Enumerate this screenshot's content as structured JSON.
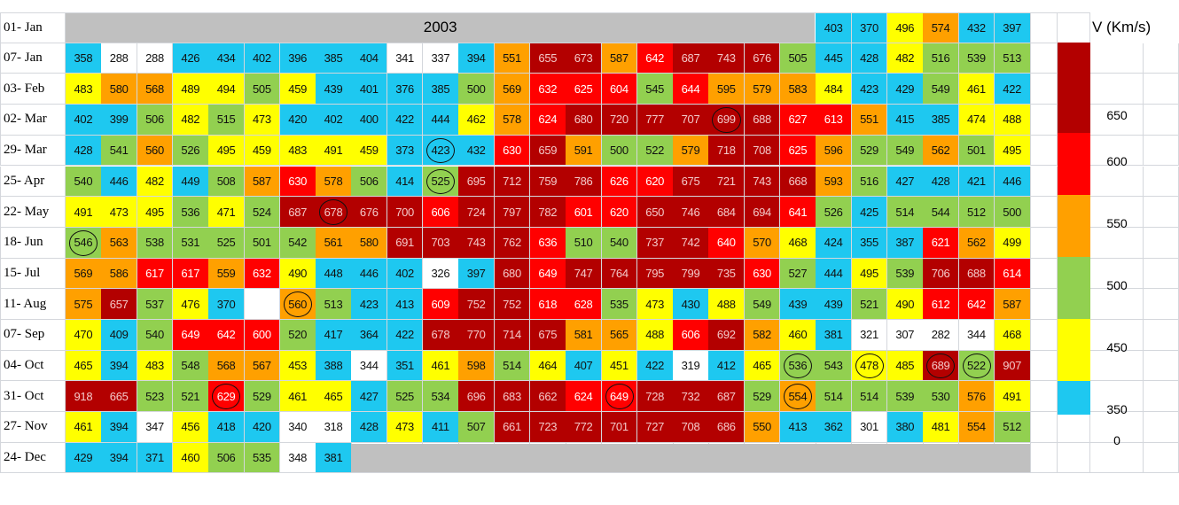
{
  "table": {
    "year": "2003",
    "rows": [
      {
        "label": "01- Jan",
        "values": [
          null,
          null,
          null,
          null,
          null,
          null,
          null,
          null,
          null,
          null,
          null,
          null,
          null,
          null,
          null,
          null,
          null,
          null,
          null,
          null,
          null,
          403,
          370,
          496,
          574,
          432,
          397
        ]
      },
      {
        "label": "07- Jan",
        "values": [
          358,
          288,
          288,
          426,
          434,
          402,
          396,
          385,
          404,
          341,
          337,
          394,
          551,
          655,
          673,
          587,
          642,
          687,
          743,
          676,
          505,
          445,
          428,
          482,
          516,
          539,
          513
        ]
      },
      {
        "label": "03- Feb",
        "values": [
          483,
          580,
          568,
          489,
          494,
          505,
          459,
          439,
          401,
          376,
          385,
          500,
          569,
          632,
          625,
          604,
          545,
          644,
          595,
          579,
          583,
          484,
          423,
          429,
          549,
          461,
          422
        ]
      },
      {
        "label": "02- Mar",
        "values": [
          402,
          399,
          506,
          482,
          515,
          473,
          420,
          402,
          400,
          422,
          444,
          462,
          578,
          624,
          680,
          720,
          777,
          707,
          699,
          688,
          627,
          613,
          551,
          415,
          385,
          474,
          488
        ]
      },
      {
        "label": "29- Mar",
        "values": [
          428,
          541,
          560,
          526,
          495,
          459,
          483,
          491,
          459,
          373,
          423,
          432,
          630,
          659,
          591,
          500,
          522,
          579,
          718,
          708,
          625,
          596,
          529,
          549,
          562,
          501,
          495
        ]
      },
      {
        "label": "25- Apr",
        "values": [
          540,
          446,
          482,
          449,
          508,
          587,
          630,
          578,
          506,
          414,
          525,
          695,
          712,
          759,
          786,
          626,
          620,
          675,
          721,
          743,
          668,
          593,
          516,
          427,
          428,
          421,
          446
        ]
      },
      {
        "label": "22- May",
        "values": [
          491,
          473,
          495,
          536,
          471,
          524,
          687,
          678,
          676,
          700,
          606,
          724,
          797,
          782,
          601,
          620,
          650,
          746,
          684,
          694,
          641,
          526,
          425,
          514,
          544,
          512,
          500
        ]
      },
      {
        "label": "18- Jun",
        "values": [
          546,
          563,
          538,
          531,
          525,
          501,
          542,
          561,
          580,
          691,
          703,
          743,
          762,
          636,
          510,
          540,
          737,
          742,
          640,
          570,
          468,
          424,
          355,
          387,
          621,
          562,
          499
        ]
      },
      {
        "label": "15- Jul",
        "values": [
          569,
          586,
          617,
          617,
          559,
          632,
          490,
          448,
          446,
          402,
          326,
          397,
          680,
          649,
          747,
          764,
          795,
          799,
          735,
          630,
          527,
          444,
          495,
          539,
          706,
          688,
          614
        ]
      },
      {
        "label": "11- Aug",
        "values": [
          575,
          657,
          537,
          476,
          370,
          null,
          560,
          513,
          423,
          413,
          609,
          752,
          752,
          618,
          628,
          535,
          473,
          430,
          488,
          549,
          439,
          439,
          521,
          490,
          612,
          642,
          587
        ]
      },
      {
        "label": "07- Sep",
        "values": [
          470,
          409,
          540,
          649,
          642,
          600,
          520,
          417,
          364,
          422,
          678,
          770,
          714,
          675,
          581,
          565,
          488,
          606,
          692,
          582,
          460,
          381,
          321,
          307,
          282,
          344,
          468
        ]
      },
      {
        "label": "04- Oct",
        "values": [
          465,
          394,
          483,
          548,
          568,
          567,
          453,
          388,
          344,
          351,
          461,
          598,
          514,
          464,
          407,
          451,
          422,
          319,
          412,
          465,
          536,
          543,
          478,
          485,
          689,
          522,
          907
        ]
      },
      {
        "label": "31- Oct",
        "values": [
          918,
          665,
          523,
          521,
          629,
          529,
          461,
          465,
          427,
          525,
          534,
          696,
          683,
          662,
          624,
          649,
          728,
          732,
          687,
          529,
          554,
          514,
          514,
          539,
          530,
          576,
          491
        ]
      },
      {
        "label": "27- Nov",
        "values": [
          461,
          394,
          347,
          456,
          418,
          420,
          340,
          318,
          428,
          473,
          411,
          507,
          661,
          723,
          772,
          701,
          727,
          708,
          686,
          550,
          413,
          362,
          301,
          380,
          481,
          554,
          512
        ]
      },
      {
        "label": "24- Dec",
        "values": [
          429,
          394,
          371,
          460,
          506,
          535,
          348,
          381
        ]
      }
    ],
    "circled": [
      [
        3,
        18
      ],
      [
        4,
        10
      ],
      [
        5,
        10
      ],
      [
        6,
        7
      ],
      [
        7,
        0
      ],
      [
        9,
        6
      ],
      [
        11,
        20
      ],
      [
        11,
        22
      ],
      [
        11,
        24
      ],
      [
        11,
        25
      ],
      [
        12,
        4
      ],
      [
        12,
        15
      ],
      [
        12,
        20
      ]
    ],
    "legend": {
      "title": "V (Km/s)",
      "levels": [
        {
          "value": 650,
          "color": "#b30000"
        },
        {
          "value": 600,
          "color": "#ff0000"
        },
        {
          "value": 550,
          "color": "#ffa000"
        },
        {
          "value": 500,
          "color": "#92d050"
        },
        {
          "value": 450,
          "color": "#ffff00"
        },
        {
          "value": 350,
          "color": "#1ec8f0"
        },
        {
          "value": 0,
          "color": "#ffffff"
        }
      ]
    }
  }
}
